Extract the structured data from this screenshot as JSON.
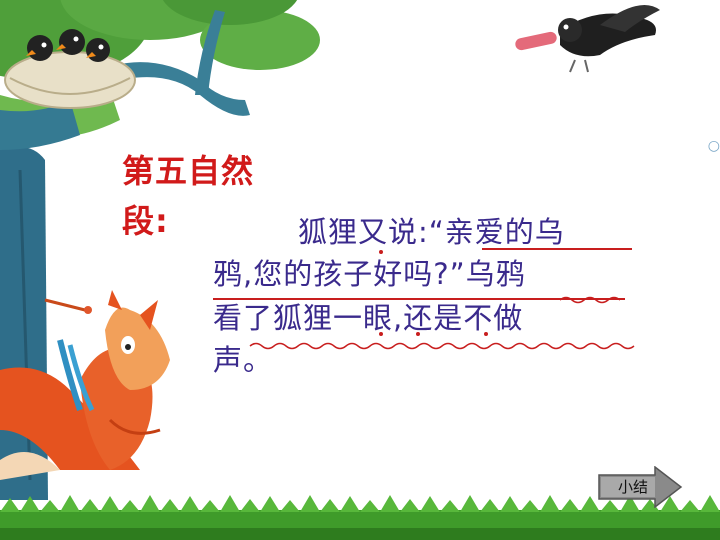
{
  "slide": {
    "title": "第五自然段:",
    "body_lines": [
      "狐狸又说:“亲爱的乌",
      "鸦,您的孩子好吗?”乌鸦",
      "看了狐狸一眼,还是不做",
      "声。"
    ],
    "summary_button_label": "小结",
    "colors": {
      "title": "#d11a1a",
      "body_text": "#3a2a8c",
      "underline": "#c81e1e",
      "grass": "#3f9b2a"
    },
    "icons": [
      "tree-illustration",
      "bird-nest-illustration",
      "crow-illustration",
      "fox-illustration",
      "grass-border",
      "right-arrow-icon"
    ]
  }
}
